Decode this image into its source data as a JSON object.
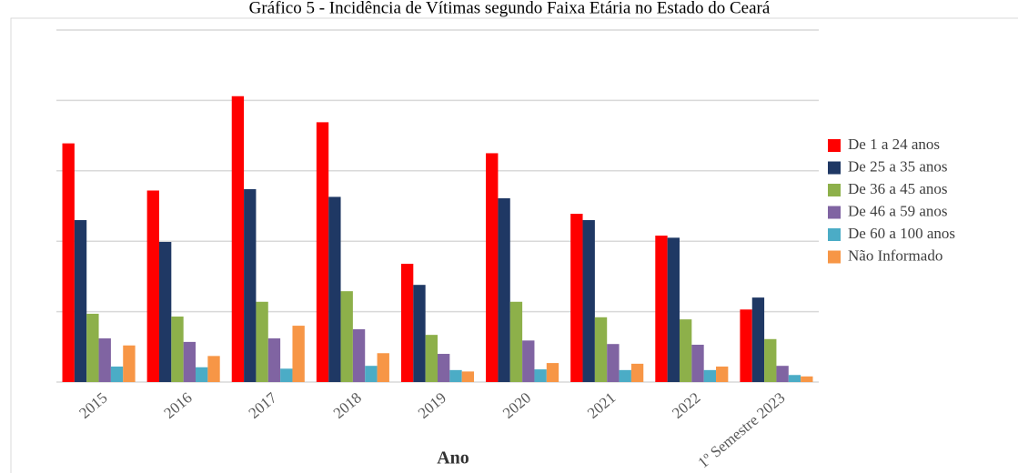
{
  "chart_data": {
    "type": "bar",
    "title": "Gráfico 5 - Incidência de Vítimas segundo Faixa Etária no Estado do Ceará",
    "x_label": "Ano",
    "categories": [
      "2015",
      "2016",
      "2017",
      "2018",
      "2019",
      "2020",
      "2021",
      "2022",
      "1º Semestre 2023"
    ],
    "series": [
      {
        "name": "De 1 a 24 anos",
        "color": "#ff0000",
        "values": [
          3.39,
          2.72,
          4.06,
          3.69,
          1.68,
          3.25,
          2.39,
          2.08,
          1.03
        ]
      },
      {
        "name": "De 25 a 35 anos",
        "color": "#1f3864",
        "values": [
          2.3,
          1.99,
          2.74,
          2.63,
          1.38,
          2.61,
          2.3,
          2.05,
          1.2
        ]
      },
      {
        "name": "De 36 a 45 anos",
        "color": "#8db04a",
        "values": [
          0.97,
          0.93,
          1.14,
          1.29,
          0.67,
          1.14,
          0.92,
          0.89,
          0.61
        ]
      },
      {
        "name": "De 46 a 59 anos",
        "color": "#8064a2",
        "values": [
          0.62,
          0.57,
          0.62,
          0.75,
          0.4,
          0.59,
          0.54,
          0.53,
          0.23
        ]
      },
      {
        "name": "De 60 a 100 anos",
        "color": "#4bacc6",
        "values": [
          0.22,
          0.21,
          0.19,
          0.23,
          0.17,
          0.18,
          0.17,
          0.17,
          0.1
        ]
      },
      {
        "name": "Não Informado",
        "color": "#f79646",
        "values": [
          0.52,
          0.37,
          0.8,
          0.41,
          0.15,
          0.27,
          0.26,
          0.22,
          0.08
        ]
      }
    ],
    "ylim": [
      0,
      5
    ],
    "yticks": [
      0,
      1,
      2,
      3,
      4,
      5
    ],
    "grid": true,
    "legend": "right"
  }
}
